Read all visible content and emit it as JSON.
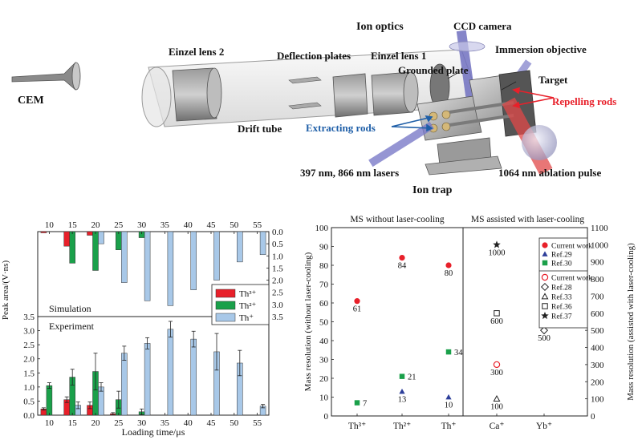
{
  "apparatus": {
    "labels": {
      "cem": "CEM",
      "einzel_lens_2": "Einzel lens 2",
      "ion_optics": "Ion optics",
      "ccd_camera": "CCD camera",
      "deflection_plates": "Deflection plates",
      "einzel_lens_1": "Einzel lens 1",
      "immersion_objective": "Immersion objective",
      "grounded_plate": "Grounded plate",
      "target": "Target",
      "repelling_rods": "Repelling rods",
      "drift_tube": "Drift tube",
      "extracting_rods": "Extracting rods",
      "lasers": "397 nm, 866 nm  lasers",
      "ablation_pulse": "1064 nm ablation pulse",
      "ion_trap": "Ion trap"
    },
    "colors": {
      "repelling": "#e8202a",
      "extracting": "#1f5fa8",
      "laser": "#7a7ac8",
      "ablation": "#e04848"
    }
  },
  "chart_data": [
    {
      "type": "bar",
      "categories": [
        "10",
        "15",
        "20",
        "25",
        "30",
        "35",
        "40",
        "45",
        "50",
        "55"
      ],
      "x_top_ticks": [
        "10",
        "15",
        "20",
        "25",
        "30",
        "35",
        "40",
        "45",
        "50",
        "55"
      ],
      "xlabel": "Loading time/μs",
      "ylabel": "Peak area/(V·ns)",
      "upper_panel": {
        "label": "Simulation",
        "ylim": [
          0,
          3.5
        ],
        "inverted": true,
        "yticks": [
          "0.0",
          "0.5",
          "1.0",
          "1.5",
          "2.0",
          "2.5",
          "3.0",
          "3.5"
        ],
        "series": [
          {
            "name": "Th³⁺",
            "color": "#e8202a",
            "values": [
              0.05,
              0.6,
              0.15,
              0.0,
              0.0,
              0.0,
              0.0,
              0.0,
              0.0,
              0.0
            ]
          },
          {
            "name": "Th²⁺",
            "color": "#1aa04a",
            "values": [
              0.0,
              1.3,
              1.6,
              0.75,
              0.25,
              0.0,
              0.0,
              0.0,
              0.0,
              0.0
            ]
          },
          {
            "name": "Th⁺",
            "color": "#a8c8e8",
            "values": [
              0.0,
              0.0,
              0.5,
              2.1,
              2.85,
              3.05,
              2.4,
              2.0,
              1.25,
              0.95
            ]
          }
        ]
      },
      "lower_panel": {
        "label": "Experiment",
        "ylim": [
          0,
          3.5
        ],
        "yticks": [
          "0.0",
          "0.5",
          "1.0",
          "1.5",
          "2.0",
          "2.5",
          "3.0",
          "3.5"
        ],
        "series": [
          {
            "name": "Th³⁺",
            "color": "#e8202a",
            "values": [
              0.22,
              0.55,
              0.35,
              0.05,
              0.0,
              0.0,
              0.0,
              0.0,
              0.0,
              0.0
            ],
            "errors": [
              0.04,
              0.1,
              0.12,
              0.04,
              0.0,
              0.0,
              0.0,
              0.0,
              0.0,
              0.0
            ]
          },
          {
            "name": "Th²⁺",
            "color": "#1aa04a",
            "values": [
              1.05,
              1.35,
              1.55,
              0.55,
              0.12,
              0.0,
              0.0,
              0.0,
              0.0,
              0.0
            ],
            "errors": [
              0.1,
              0.28,
              0.65,
              0.3,
              0.1,
              0.0,
              0.0,
              0.0,
              0.0,
              0.0
            ]
          },
          {
            "name": "Th⁺",
            "color": "#a8c8e8",
            "values": [
              0.0,
              0.35,
              1.0,
              2.2,
              2.55,
              3.05,
              2.7,
              2.25,
              1.85,
              0.32
            ],
            "errors": [
              0.0,
              0.12,
              0.15,
              0.25,
              0.2,
              0.28,
              0.28,
              0.65,
              0.45,
              0.06
            ]
          }
        ]
      },
      "legend": {
        "placement": "right",
        "entries": [
          "Th³⁺",
          "Th²⁺",
          "Th⁺"
        ]
      }
    },
    {
      "type": "scatter",
      "categories": [
        "Th³⁺",
        "Th²⁺",
        "Th⁺",
        "Ca⁺",
        "Yb⁺"
      ],
      "left_title": "MS without laser-cooling",
      "right_title": "MS assisted with laser-cooling",
      "ylabel_left": "Mass resolution (without laser-cooling)",
      "ylabel_right": "Mass resolution (assisted with laser-cooling)",
      "ylim_left": [
        0,
        100
      ],
      "ylim_right": [
        0,
        1100
      ],
      "yticks_left": [
        0,
        10,
        20,
        30,
        40,
        50,
        60,
        70,
        80,
        90,
        100
      ],
      "yticks_right": [
        0,
        100,
        200,
        300,
        400,
        500,
        600,
        700,
        800,
        900,
        1000,
        1100
      ],
      "points_left": [
        {
          "series": "Current work",
          "category": "Th³⁺",
          "y": 61,
          "label": "61"
        },
        {
          "series": "Ref.30",
          "category": "Th³⁺",
          "y": 7,
          "label": "7"
        },
        {
          "series": "Current work",
          "category": "Th²⁺",
          "y": 84,
          "label": "84"
        },
        {
          "series": "Ref.30",
          "category": "Th²⁺",
          "y": 21,
          "label": "21"
        },
        {
          "series": "Ref.29",
          "category": "Th²⁺",
          "y": 13,
          "label": "13"
        },
        {
          "series": "Current work",
          "category": "Th⁺",
          "y": 80,
          "label": "80"
        },
        {
          "series": "Ref.30",
          "category": "Th⁺",
          "y": 34,
          "label": "34"
        },
        {
          "series": "Ref.29",
          "category": "Th⁺",
          "y": 10,
          "label": "10"
        }
      ],
      "points_right": [
        {
          "series": "Ref.37",
          "category": "Ca⁺",
          "y": 1000,
          "label": "1000"
        },
        {
          "series": "Ref.36",
          "category": "Ca⁺",
          "y": 600,
          "label": "600"
        },
        {
          "series": "Current work",
          "category": "Ca⁺",
          "y": 300,
          "label": "300"
        },
        {
          "series": "Ref.33",
          "category": "Ca⁺",
          "y": 100,
          "label": "100"
        },
        {
          "series": "Ref.28",
          "category": "Yb⁺",
          "y": 500,
          "label": "500"
        }
      ],
      "legend_upper": [
        "Current work",
        "Ref.29",
        "Ref.30"
      ],
      "legend_lower": [
        "Current work",
        "Ref.28",
        "Ref.33",
        "Ref.36",
        "Ref.37"
      ]
    }
  ]
}
